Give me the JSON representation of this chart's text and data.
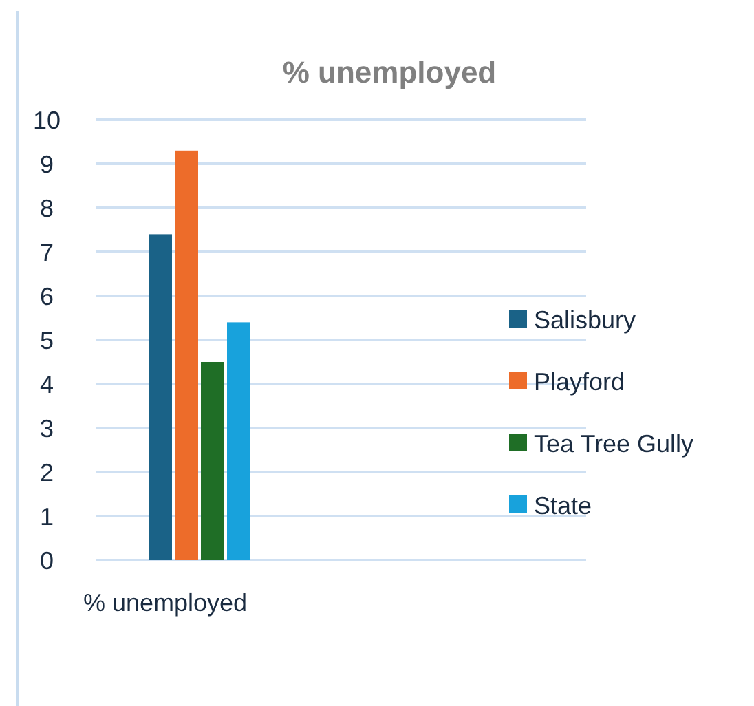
{
  "chart_data": {
    "type": "bar",
    "title": "% unemployed",
    "categories": [
      "% unemployed"
    ],
    "series": [
      {
        "name": "Salisbury",
        "color": "#1a6287",
        "values": [
          7.4
        ]
      },
      {
        "name": "Playford",
        "color": "#ed6c2a",
        "values": [
          9.3
        ]
      },
      {
        "name": "Tea Tree Gully",
        "color": "#1f6e26",
        "values": [
          4.5
        ]
      },
      {
        "name": "State",
        "color": "#18a2dc",
        "values": [
          5.4
        ]
      }
    ],
    "ylim": [
      0,
      10
    ],
    "yticks": [
      0,
      1,
      2,
      3,
      4,
      5,
      6,
      7,
      8,
      9,
      10
    ],
    "grid": "y",
    "legend": "right"
  }
}
